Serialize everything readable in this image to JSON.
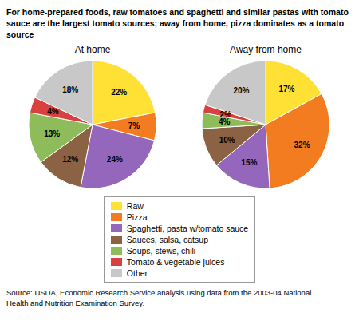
{
  "title": "For home-prepared foods, raw tomatoes and spaghetti and similar pastas with tomato\nsauce are the largest tomato sources; away from home, pizza dominates as a tomato\nsource",
  "annotations": [
    "Source: USDA, Economic Research Service analysis using data from the 2003-04 National\nHealth and Nutrition Examination Survey."
  ],
  "chart_data": [
    {
      "type": "pie",
      "title": "At home",
      "categories": [
        "Raw",
        "Pizza",
        "Spaghetti, pasta w/tomato sauce",
        "Sauces, salsa, catsup",
        "Soups, stews, chili",
        "Tomato & vegetable juices",
        "Other"
      ],
      "values": [
        22,
        7,
        24,
        12,
        13,
        4,
        18
      ],
      "value_labels": [
        "22%",
        "7%",
        "24%",
        "12%",
        "13%",
        "4%",
        "18%"
      ],
      "colors": [
        "#FFE135",
        "#F47C20",
        "#9467BD",
        "#8B6344",
        "#8FBC5A",
        "#D94040",
        "#C8C8C8"
      ],
      "data_labels": true,
      "legend": "bottom"
    },
    {
      "type": "pie",
      "title": "Away from home",
      "categories": [
        "Raw",
        "Pizza",
        "Spaghetti, pasta w/tomato sauce",
        "Sauces, salsa, catsup",
        "Soups, stews, chili",
        "Tomato & vegetable juices",
        "Other"
      ],
      "values": [
        17,
        32,
        15,
        10,
        4,
        2,
        20
      ],
      "value_labels": [
        "17%",
        "32%",
        "15%",
        "10%",
        "4%",
        "2%",
        "20%"
      ],
      "colors": [
        "#FFE135",
        "#F47C20",
        "#9467BD",
        "#8B6344",
        "#8FBC5A",
        "#D94040",
        "#C8C8C8"
      ],
      "data_labels": true,
      "legend": "bottom"
    }
  ]
}
